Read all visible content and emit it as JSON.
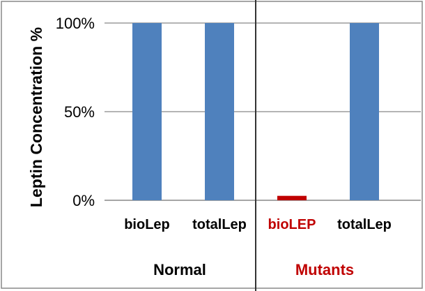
{
  "chart_data": {
    "type": "bar",
    "ylabel": "Leptin Concentration %",
    "ylim": [
      0,
      100
    ],
    "yticks": [
      "0%",
      "50%",
      "100%"
    ],
    "ytick_values": [
      0,
      50,
      100
    ],
    "grid": true,
    "categories": [
      "bioLep",
      "totalLep",
      "bioLEP",
      "totalLep"
    ],
    "values": [
      100,
      100,
      2.5,
      100
    ],
    "bar_colors": [
      "#4f81bd",
      "#4f81bd",
      "#c00000",
      "#4f81bd"
    ],
    "category_label_colors": [
      "#000000",
      "#000000",
      "#c00000",
      "#000000"
    ],
    "groups": [
      {
        "label": "Normal",
        "color": "#000000"
      },
      {
        "label": "Mutants",
        "color": "#c00000"
      }
    ]
  }
}
